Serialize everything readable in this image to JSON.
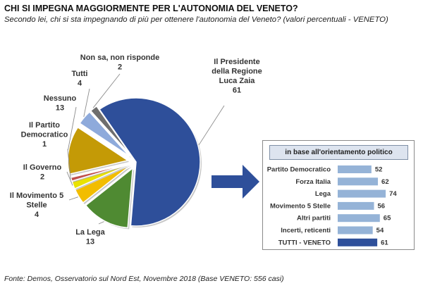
{
  "title": "CHI SI IMPEGNA MAGGIORMENTE PER L'AUTONOMIA DEL VENETO?",
  "subtitle": "Secondo lei, chi si sta impegnando di più per ottenere l'autonomia del Veneto? (valori percentuali - VENETO)",
  "source": "Fonte: Demos, Osservatorio sul Nord Est, Novembre 2018 (Base VENETO: 556 casi)",
  "chart_data": [
    {
      "type": "pie",
      "slices": [
        {
          "label": "Il Presidente della Regione Luca Zaia",
          "value": 61,
          "color": "#2e4f9a"
        },
        {
          "label": "La Lega",
          "value": 13,
          "color": "#4f8a32"
        },
        {
          "label": "Il Movimento 5 Stelle",
          "value": 4,
          "color": "#f2bd00"
        },
        {
          "label": "Il Governo",
          "value": 2,
          "color": "#e9e200"
        },
        {
          "label": "Il Partito Democratico",
          "value": 1,
          "color": "#c0504d"
        },
        {
          "label": "Nessuno",
          "value": 13,
          "color": "#c49a06"
        },
        {
          "label": "Tutti",
          "value": 4,
          "color": "#8eaadb"
        },
        {
          "label": "Non sa, non risponde",
          "value": 2,
          "color": "#6e6e6e"
        }
      ]
    },
    {
      "type": "bar",
      "title": "in base all'orientamento politico",
      "categories": [
        "Partito Democratico",
        "Forza Italia",
        "Lega",
        "Movimento 5 Stelle",
        "Altri partiti",
        "Incerti, reticenti",
        "TUTTI - VENETO"
      ],
      "values": [
        52,
        62,
        74,
        56,
        65,
        54,
        61
      ],
      "colors": [
        "#95b3d7",
        "#95b3d7",
        "#95b3d7",
        "#95b3d7",
        "#95b3d7",
        "#95b3d7",
        "#2e4f9a"
      ]
    }
  ]
}
